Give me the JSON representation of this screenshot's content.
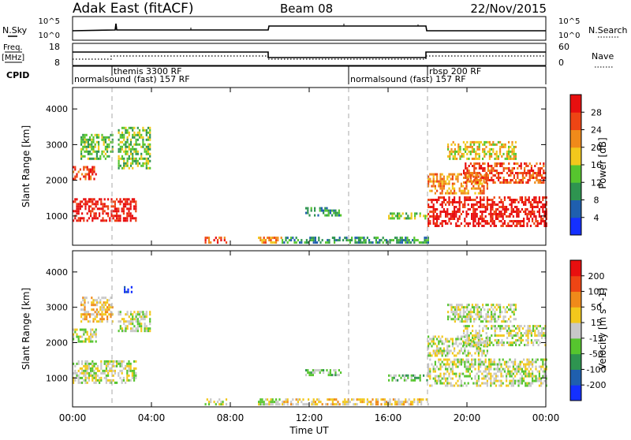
{
  "header": {
    "station": "Adak East (fitACF)",
    "beam": "Beam 08",
    "date": "22/Nov/2015"
  },
  "noise_panel": {
    "left_label": "N.Sky",
    "right_label": "N.Search",
    "left_ticks": [
      "10^5",
      "10^0"
    ],
    "right_ticks": [
      "10^5",
      "10^0"
    ]
  },
  "freq_panel": {
    "left_label_top": "Freq.",
    "left_label_unit": "[MHz]",
    "left_ticks": [
      "18",
      "8"
    ],
    "right_label": "Nave",
    "right_ticks": [
      "60",
      "0"
    ]
  },
  "cpid": {
    "label": "CPID",
    "programs": [
      {
        "text": "normalsound (fast) 157 RF",
        "row": "lower",
        "start_hour": 0
      },
      {
        "text": "themis 3300 RF",
        "row": "upper",
        "start_hour": 2
      },
      {
        "text": "normalsound (fast) 157 RF",
        "row": "lower",
        "start_hour": 14
      },
      {
        "text": "rbsp 200 RF",
        "row": "upper",
        "start_hour": 18
      }
    ]
  },
  "time_axis": {
    "title": "Time UT",
    "ticks": [
      "00:00",
      "04:00",
      "08:00",
      "12:00",
      "16:00",
      "20:00",
      "00:00"
    ],
    "tick_hours": [
      0,
      4,
      8,
      12,
      16,
      20,
      24
    ],
    "range_hours": [
      0,
      24
    ],
    "mode_change_hours": [
      2,
      14,
      18
    ]
  },
  "chart_data": [
    {
      "type": "heatmap",
      "title": "",
      "xlabel": "",
      "ylabel": "Slant Range [km]",
      "xlim": [
        0,
        24
      ],
      "ylim": [
        180,
        4600
      ],
      "yticks": [
        1000,
        2000,
        3000,
        4000
      ],
      "colorbar": {
        "label": "Power [dB]",
        "ticks": [
          "4",
          "8",
          "12",
          "16",
          "20",
          "24",
          "28"
        ],
        "colors": [
          "#1430ff",
          "#1f5fae",
          "#2e9450",
          "#56c52e",
          "#f2c81c",
          "#f08a1a",
          "#ee4514",
          "#e80f0f"
        ]
      },
      "echo_regions": [
        {
          "t0": 0.0,
          "t1": 3.2,
          "r0": 850,
          "r1": 1500,
          "level": 7
        },
        {
          "t0": 0.0,
          "t1": 1.2,
          "r0": 2050,
          "r1": 2400,
          "level": 6
        },
        {
          "t0": 0.4,
          "t1": 2.0,
          "r0": 2600,
          "r1": 3300,
          "level": 3
        },
        {
          "t0": 2.3,
          "t1": 3.9,
          "r0": 2350,
          "r1": 3500,
          "level": 3
        },
        {
          "t0": 6.7,
          "t1": 7.8,
          "r0": 250,
          "r1": 420,
          "level": 6
        },
        {
          "t0": 9.4,
          "t1": 10.6,
          "r0": 250,
          "r1": 420,
          "level": 5
        },
        {
          "t0": 10.6,
          "t1": 18.0,
          "r0": 230,
          "r1": 420,
          "level": 2
        },
        {
          "t0": 11.8,
          "t1": 13.6,
          "r0": 1050,
          "r1": 1250,
          "level": 2
        },
        {
          "t0": 16.0,
          "t1": 18.0,
          "r0": 920,
          "r1": 1100,
          "level": 3
        },
        {
          "t0": 18.0,
          "t1": 24.0,
          "r0": 750,
          "r1": 1550,
          "level": 7
        },
        {
          "t0": 18.0,
          "t1": 21.0,
          "r0": 1650,
          "r1": 2200,
          "level": 5
        },
        {
          "t0": 19.8,
          "t1": 24.0,
          "r0": 1950,
          "r1": 2500,
          "level": 6
        },
        {
          "t0": 19.0,
          "t1": 22.5,
          "r0": 2600,
          "r1": 3100,
          "level": 4
        }
      ]
    },
    {
      "type": "heatmap",
      "title": "",
      "xlabel": "Time UT",
      "ylabel": "Slant Range [km]",
      "xlim": [
        0,
        24
      ],
      "ylim": [
        180,
        4600
      ],
      "yticks": [
        1000,
        2000,
        3000,
        4000
      ],
      "colorbar": {
        "label": "Velocity [m s^-1]",
        "ticks": [
          "200",
          "100",
          "50",
          "15",
          "-15",
          "-50",
          "-100",
          "-200"
        ],
        "colors": [
          "#1430ff",
          "#1f5fae",
          "#2e9450",
          "#56c52e",
          "#c8c8c8",
          "#f2c81c",
          "#f08a1a",
          "#ee4514",
          "#e80f0f"
        ]
      },
      "echo_regions": [
        {
          "t0": 0.0,
          "t1": 3.2,
          "r0": 850,
          "r1": 1500,
          "level": 4
        },
        {
          "t0": 0.0,
          "t1": 1.2,
          "r0": 2050,
          "r1": 2400,
          "level": 4
        },
        {
          "t0": 0.4,
          "t1": 2.0,
          "r0": 2600,
          "r1": 3300,
          "level": 5
        },
        {
          "t0": 2.3,
          "t1": 3.9,
          "r0": 2350,
          "r1": 2900,
          "level": 4
        },
        {
          "t0": 2.6,
          "t1": 3.0,
          "r0": 3400,
          "r1": 3600,
          "level": 0
        },
        {
          "t0": 6.7,
          "t1": 7.8,
          "r0": 250,
          "r1": 420,
          "level": 4
        },
        {
          "t0": 9.4,
          "t1": 10.6,
          "r0": 250,
          "r1": 420,
          "level": 4
        },
        {
          "t0": 10.6,
          "t1": 18.0,
          "r0": 230,
          "r1": 420,
          "level": 5
        },
        {
          "t0": 11.8,
          "t1": 13.6,
          "r0": 1050,
          "r1": 1250,
          "level": 3
        },
        {
          "t0": 16.0,
          "t1": 18.0,
          "r0": 920,
          "r1": 1100,
          "level": 3
        },
        {
          "t0": 18.0,
          "t1": 24.0,
          "r0": 750,
          "r1": 1550,
          "level": 4
        },
        {
          "t0": 18.0,
          "t1": 21.0,
          "r0": 1650,
          "r1": 2200,
          "level": 4
        },
        {
          "t0": 19.8,
          "t1": 24.0,
          "r0": 1950,
          "r1": 2500,
          "level": 4
        },
        {
          "t0": 19.0,
          "t1": 22.5,
          "r0": 2600,
          "r1": 3100,
          "level": 4
        }
      ]
    }
  ]
}
